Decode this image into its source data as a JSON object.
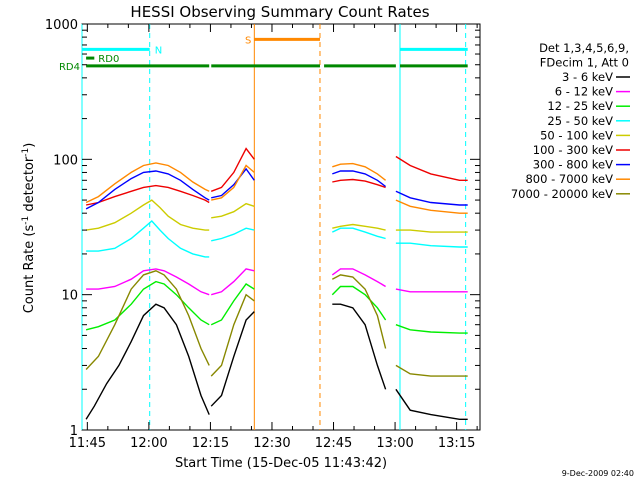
{
  "chart_data": {
    "type": "line",
    "title": "HESSI Observing Summary Count Rates",
    "xlabel": "Start Time (15-Dec-05 11:43:42)",
    "ylabel_main": "Count Rate (s",
    "ylabel_sup1": "-1",
    "ylabel_mid": " detector",
    "ylabel_sup2": "-1",
    "ylabel_end": ")",
    "footer_date": "9-Dec-2009 02:40",
    "x_axis": {
      "unit": "minutes since 11:43:42",
      "range": [
        0,
        97
      ],
      "ticks": [
        {
          "label": "11:45",
          "value": 1.3
        },
        {
          "label": "12:00",
          "value": 16.3
        },
        {
          "label": "12:15",
          "value": 31.3
        },
        {
          "label": "12:30",
          "value": 46.3
        },
        {
          "label": "12:45",
          "value": 61.3
        },
        {
          "label": "13:00",
          "value": 76.3
        },
        {
          "label": "13:15",
          "value": 91.3
        }
      ]
    },
    "y_axis": {
      "scale": "log",
      "range": [
        1,
        1000
      ],
      "ticks": [
        {
          "label": "1",
          "value": 1
        },
        {
          "label": "10",
          "value": 10
        },
        {
          "label": "100",
          "value": 100
        },
        {
          "label": "1000",
          "value": 1000
        }
      ]
    },
    "legend": {
      "placement": "right",
      "header": [
        "Det 1,3,4,5,6,9,",
        "FDecim 1, Att 0"
      ]
    },
    "series": [
      {
        "name": "3 - 6 keV",
        "color": "#000000",
        "segments": [
          {
            "x": [
              1,
              3,
              6,
              9,
              12,
              15,
              18,
              20,
              23,
              26,
              29,
              31
            ],
            "y": [
              1.2,
              1.5,
              2.2,
              3.0,
              4.5,
              7.0,
              8.5,
              8.0,
              6.0,
              3.5,
              1.8,
              1.3
            ]
          },
          {
            "x": [
              31.5,
              34,
              37,
              40,
              42
            ],
            "y": [
              1.5,
              1.8,
              3.5,
              6.5,
              7.5
            ]
          },
          {
            "x": [
              61,
              63,
              66,
              69,
              72,
              74
            ],
            "y": [
              8.5,
              8.5,
              8.0,
              6.0,
              3.0,
              2.0
            ]
          },
          {
            "x": [
              76.5,
              80,
              85,
              92,
              94
            ],
            "y": [
              2.0,
              1.4,
              1.3,
              1.2,
              1.2
            ]
          }
        ]
      },
      {
        "name": "6 - 12 keV",
        "color": "#ff00ff",
        "segments": [
          {
            "x": [
              1,
              4,
              8,
              12,
              15,
              18,
              20,
              23,
              26,
              29,
              31
            ],
            "y": [
              11,
              11,
              11.5,
              13,
              15,
              15.5,
              15,
              13.5,
              12,
              10.5,
              10
            ]
          },
          {
            "x": [
              31.5,
              34,
              37,
              40,
              42
            ],
            "y": [
              10,
              10.5,
              12.5,
              15.5,
              15
            ]
          },
          {
            "x": [
              61,
              63,
              66,
              69,
              72,
              74
            ],
            "y": [
              14,
              15.5,
              15.5,
              14,
              12.5,
              11.5
            ]
          },
          {
            "x": [
              76.5,
              80,
              85,
              92,
              94
            ],
            "y": [
              11,
              10.5,
              10.5,
              10.5,
              10.5
            ]
          }
        ]
      },
      {
        "name": "12 - 25 keV",
        "color": "#00ee00",
        "segments": [
          {
            "x": [
              1,
              4,
              8,
              12,
              15,
              18,
              20,
              23,
              26,
              29,
              31
            ],
            "y": [
              5.5,
              5.8,
              6.5,
              8.5,
              11,
              12.5,
              12,
              10,
              8,
              6.5,
              6
            ]
          },
          {
            "x": [
              31.5,
              34,
              37,
              40,
              42
            ],
            "y": [
              6,
              6.5,
              9,
              12,
              11
            ]
          },
          {
            "x": [
              61,
              63,
              66,
              69,
              72,
              74
            ],
            "y": [
              10,
              11.5,
              11.5,
              10,
              8,
              6.5
            ]
          },
          {
            "x": [
              76.5,
              80,
              85,
              92,
              94
            ],
            "y": [
              6,
              5.5,
              5.3,
              5.2,
              5.2
            ]
          }
        ]
      },
      {
        "name": "25 - 50 keV",
        "color": "#00ffff",
        "segments": [
          {
            "x": [
              1,
              4,
              8,
              12,
              15,
              17,
              19,
              21,
              24,
              27,
              30,
              31
            ],
            "y": [
              21,
              21,
              22,
              26,
              31,
              35,
              30,
              26,
              22,
              20,
              19,
              19
            ]
          },
          {
            "x": [
              31.5,
              34,
              37,
              40,
              42
            ],
            "y": [
              25,
              26,
              28,
              31,
              30
            ]
          },
          {
            "x": [
              61,
              63,
              66,
              69,
              72,
              74
            ],
            "y": [
              29,
              31,
              31,
              29,
              27,
              26
            ]
          },
          {
            "x": [
              76.5,
              80,
              85,
              92,
              94
            ],
            "y": [
              24,
              24,
              23,
              22.5,
              22.5
            ]
          }
        ]
      },
      {
        "name": "50 - 100 keV",
        "color": "#cccc00",
        "segments": [
          {
            "x": [
              1,
              4,
              8,
              12,
              15,
              17,
              19,
              21,
              24,
              27,
              30,
              31
            ],
            "y": [
              30,
              31,
              34,
              40,
              46,
              50,
              44,
              38,
              33,
              31,
              30,
              30
            ]
          },
          {
            "x": [
              31.5,
              34,
              37,
              40,
              42
            ],
            "y": [
              37,
              38,
              41,
              47,
              45
            ]
          },
          {
            "x": [
              61,
              63,
              66,
              69,
              72,
              74
            ],
            "y": [
              31,
              32,
              33,
              32,
              31,
              30
            ]
          },
          {
            "x": [
              76.5,
              80,
              85,
              92,
              94
            ],
            "y": [
              30,
              30,
              29,
              29,
              29
            ]
          }
        ]
      },
      {
        "name": "100 - 300 keV",
        "color": "#ee0000",
        "segments": [
          {
            "x": [
              1,
              4,
              8,
              12,
              15,
              18,
              21,
              24,
              27,
              30,
              31
            ],
            "y": [
              46,
              48,
              53,
              58,
              62,
              64,
              62,
              58,
              54,
              50,
              48
            ]
          },
          {
            "x": [
              31.5,
              34,
              37,
              40,
              42
            ],
            "y": [
              58,
              62,
              80,
              120,
              100
            ]
          },
          {
            "x": [
              61,
              63,
              66,
              69,
              72,
              74
            ],
            "y": [
              68,
              70,
              71,
              69,
              65,
              62
            ]
          },
          {
            "x": [
              76.5,
              80,
              85,
              92,
              94
            ],
            "y": [
              105,
              90,
              78,
              70,
              70
            ]
          }
        ]
      },
      {
        "name": "300 - 800 keV",
        "color": "#0000ff",
        "segments": [
          {
            "x": [
              1,
              4,
              8,
              12,
              15,
              18,
              21,
              24,
              27,
              30,
              31
            ],
            "y": [
              43,
              48,
              60,
              72,
              80,
              82,
              78,
              70,
              60,
              52,
              50
            ]
          },
          {
            "x": [
              31.5,
              34,
              37,
              40,
              42
            ],
            "y": [
              52,
              54,
              65,
              85,
              70
            ]
          },
          {
            "x": [
              61,
              63,
              66,
              69,
              72,
              74
            ],
            "y": [
              78,
              82,
              82,
              78,
              70,
              63
            ]
          },
          {
            "x": [
              76.5,
              80,
              85,
              92,
              94
            ],
            "y": [
              58,
              52,
              48,
              46,
              46
            ]
          }
        ]
      },
      {
        "name": "800 - 7000 keV",
        "color": "#ff8800",
        "segments": [
          {
            "x": [
              1,
              4,
              8,
              12,
              15,
              18,
              21,
              24,
              27,
              30,
              31
            ],
            "y": [
              48,
              53,
              66,
              80,
              90,
              94,
              90,
              80,
              68,
              60,
              58
            ]
          },
          {
            "x": [
              31.5,
              34,
              37,
              40,
              42
            ],
            "y": [
              50,
              52,
              62,
              90,
              80
            ]
          },
          {
            "x": [
              61,
              63,
              66,
              69,
              72,
              74
            ],
            "y": [
              88,
              92,
              93,
              88,
              78,
              70
            ]
          },
          {
            "x": [
              76.5,
              80,
              85,
              92,
              94
            ],
            "y": [
              50,
              45,
              42,
              40,
              40
            ]
          }
        ]
      },
      {
        "name": "7000 - 20000 keV",
        "color": "#888800",
        "segments": [
          {
            "x": [
              1,
              4,
              8,
              12,
              15,
              18,
              20,
              23,
              26,
              29,
              31
            ],
            "y": [
              2.8,
              3.5,
              6.0,
              11,
              14,
              15,
              14,
              11,
              7,
              4,
              3
            ]
          },
          {
            "x": [
              31.5,
              34,
              37,
              40,
              42
            ],
            "y": [
              2.5,
              3,
              6,
              10,
              9
            ]
          },
          {
            "x": [
              61,
              63,
              66,
              69,
              72,
              74
            ],
            "y": [
              13,
              14,
              13.5,
              11,
              7,
              4
            ]
          },
          {
            "x": [
              76.5,
              80,
              85,
              92,
              94
            ],
            "y": [
              3,
              2.6,
              2.5,
              2.5,
              2.5
            ]
          }
        ]
      }
    ],
    "orbit_markers": [
      {
        "x": 0,
        "color": "#00ffff",
        "style": "solid"
      },
      {
        "x": 16.5,
        "color": "#00ffff",
        "style": "dashed"
      },
      {
        "x": 42,
        "color": "#ff8800",
        "style": "solid"
      },
      {
        "x": 58,
        "color": "#ff8800",
        "style": "dashed"
      },
      {
        "x": 77.5,
        "color": "#00ffff",
        "style": "solid"
      },
      {
        "x": 93.5,
        "color": "#00ffff",
        "style": "dashed"
      }
    ],
    "flag_bars": [
      {
        "label": "N",
        "color": "#00ffff",
        "y_level": 650,
        "spans": [
          [
            0,
            16.5
          ],
          [
            77.5,
            94
          ]
        ]
      },
      {
        "label": "S",
        "color": "#ff8800",
        "y_level": 770,
        "spans": [
          [
            42,
            58
          ]
        ]
      },
      {
        "label": "RD0",
        "color": "#008800",
        "y_level": 560,
        "spans": [
          [
            1,
            3
          ]
        ]
      },
      {
        "label": "RD4",
        "color": "#008800",
        "y_level": 490,
        "spans": [
          [
            1,
            31
          ],
          [
            31.5,
            58
          ],
          [
            59,
            76.5
          ],
          [
            77.5,
            94
          ]
        ]
      }
    ]
  }
}
